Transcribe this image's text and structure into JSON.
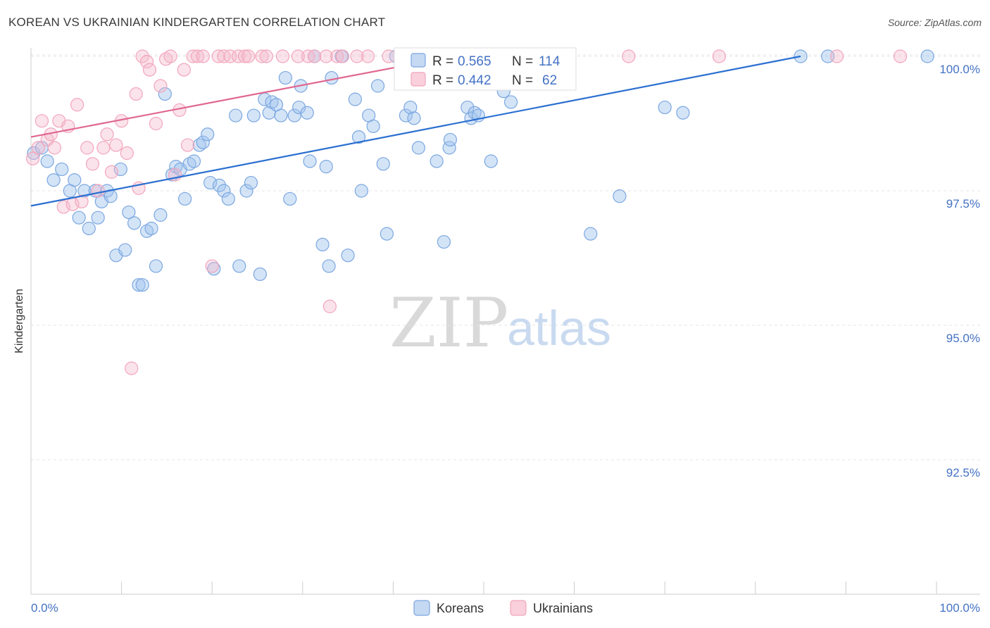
{
  "title": "KOREAN VS UKRAINIAN KINDERGARTEN CORRELATION CHART",
  "source": "Source: ZipAtlas.com",
  "watermark": {
    "part1": "ZIP",
    "part2": "atlas"
  },
  "chart_data": {
    "type": "scatter",
    "title": "KOREAN VS UKRAINIAN KINDERGARTEN CORRELATION CHART",
    "xlabel": "",
    "ylabel": "Kindergarten",
    "xlim": [
      0,
      100
    ],
    "ylim": [
      90.2,
      100.4
    ],
    "x_tick_labels": [
      "0.0%",
      "100.0%"
    ],
    "y_ticks": [
      100.0,
      97.5,
      95.0,
      92.5
    ],
    "y_tick_labels": [
      "100.0%",
      "97.5%",
      "95.0%",
      "92.5%"
    ],
    "legend": [
      {
        "name": "Koreans",
        "R_label": "R = ",
        "R": "0.565",
        "N_label": "N = ",
        "N": "114",
        "color": "#7ba7e0"
      },
      {
        "name": "Ukrainians",
        "R_label": "R = ",
        "R": "0.442",
        "N_label": "N = ",
        "N": "62",
        "color": "#f2a5bb"
      }
    ],
    "series": [
      {
        "name": "Koreans",
        "color": "#7ba7e0",
        "trend_color": "#2a6fd1",
        "trend": {
          "x": [
            0,
            85
          ],
          "y": [
            97.22,
            100.0
          ]
        },
        "points": [
          [
            0.3,
            98.2
          ],
          [
            1.8,
            98.05
          ],
          [
            1.2,
            98.3
          ],
          [
            2.5,
            97.7
          ],
          [
            3.4,
            97.9
          ],
          [
            4.3,
            97.5
          ],
          [
            4.8,
            97.7
          ],
          [
            5.3,
            97.0
          ],
          [
            5.9,
            97.5
          ],
          [
            6.4,
            96.8
          ],
          [
            7.1,
            97.5
          ],
          [
            7.4,
            97.0
          ],
          [
            7.8,
            97.3
          ],
          [
            8.4,
            97.5
          ],
          [
            8.8,
            97.4
          ],
          [
            9.4,
            96.3
          ],
          [
            9.9,
            97.9
          ],
          [
            10.4,
            96.4
          ],
          [
            10.8,
            97.1
          ],
          [
            11.4,
            96.9
          ],
          [
            11.9,
            95.75
          ],
          [
            12.3,
            95.75
          ],
          [
            12.8,
            96.75
          ],
          [
            13.3,
            96.8
          ],
          [
            13.8,
            96.1
          ],
          [
            14.3,
            97.05
          ],
          [
            14.8,
            99.3
          ],
          [
            15.6,
            97.8
          ],
          [
            16.0,
            97.95
          ],
          [
            16.5,
            97.9
          ],
          [
            17.0,
            97.35
          ],
          [
            17.5,
            98.0
          ],
          [
            18.0,
            98.05
          ],
          [
            18.6,
            98.35
          ],
          [
            19.0,
            98.4
          ],
          [
            19.5,
            98.55
          ],
          [
            19.8,
            97.65
          ],
          [
            20.2,
            96.05
          ],
          [
            20.8,
            97.6
          ],
          [
            21.3,
            97.5
          ],
          [
            21.8,
            97.35
          ],
          [
            22.6,
            98.9
          ],
          [
            23.0,
            96.1
          ],
          [
            23.8,
            97.5
          ],
          [
            24.3,
            97.65
          ],
          [
            24.6,
            98.9
          ],
          [
            25.3,
            95.95
          ],
          [
            25.8,
            99.2
          ],
          [
            26.3,
            98.95
          ],
          [
            26.6,
            99.15
          ],
          [
            27.1,
            99.1
          ],
          [
            27.6,
            98.9
          ],
          [
            28.1,
            99.6
          ],
          [
            28.6,
            97.35
          ],
          [
            29.1,
            98.9
          ],
          [
            29.6,
            99.05
          ],
          [
            29.8,
            99.45
          ],
          [
            30.5,
            98.95
          ],
          [
            30.8,
            98.05
          ],
          [
            31.3,
            100.0
          ],
          [
            32.2,
            96.5
          ],
          [
            32.6,
            97.95
          ],
          [
            32.9,
            96.1
          ],
          [
            33.2,
            99.6
          ],
          [
            34.3,
            100.0
          ],
          [
            35.0,
            96.3
          ],
          [
            35.8,
            99.2
          ],
          [
            36.2,
            98.5
          ],
          [
            36.5,
            97.5
          ],
          [
            37.3,
            98.9
          ],
          [
            37.8,
            98.7
          ],
          [
            38.3,
            99.45
          ],
          [
            38.9,
            98.0
          ],
          [
            39.3,
            96.7
          ],
          [
            40.3,
            100.0
          ],
          [
            41.4,
            98.9
          ],
          [
            41.9,
            99.05
          ],
          [
            42.3,
            98.85
          ],
          [
            42.8,
            98.3
          ],
          [
            44.8,
            98.05
          ],
          [
            45.6,
            96.55
          ],
          [
            46.2,
            98.3
          ],
          [
            46.3,
            98.45
          ],
          [
            47.2,
            100.0
          ],
          [
            48.2,
            99.05
          ],
          [
            48.6,
            98.85
          ],
          [
            49.0,
            98.95
          ],
          [
            49.4,
            98.9
          ],
          [
            50.5,
            99.5
          ],
          [
            50.8,
            98.05
          ],
          [
            52.2,
            99.35
          ],
          [
            53.0,
            99.15
          ],
          [
            53.8,
            99.6
          ],
          [
            54.6,
            99.6
          ],
          [
            55.4,
            100.0
          ],
          [
            61.8,
            96.7
          ],
          [
            65.0,
            97.4
          ],
          [
            70.0,
            99.05
          ],
          [
            72.0,
            98.95
          ],
          [
            85.0,
            100.0
          ],
          [
            88.0,
            100.0
          ],
          [
            99.0,
            100.0
          ]
        ]
      },
      {
        "name": "Ukrainians",
        "color": "#f2a5bb",
        "trend_color": "#e0678f",
        "trend": {
          "x": [
            0,
            42
          ],
          "y": [
            98.5,
            99.85
          ]
        },
        "points": [
          [
            0.2,
            98.1
          ],
          [
            0.8,
            98.3
          ],
          [
            1.2,
            98.8
          ],
          [
            1.8,
            98.45
          ],
          [
            2.2,
            98.55
          ],
          [
            2.6,
            98.3
          ],
          [
            3.1,
            98.8
          ],
          [
            3.6,
            97.2
          ],
          [
            4.1,
            98.7
          ],
          [
            4.6,
            97.25
          ],
          [
            5.1,
            99.1
          ],
          [
            5.6,
            97.3
          ],
          [
            6.2,
            98.3
          ],
          [
            6.8,
            98.0
          ],
          [
            7.4,
            97.5
          ],
          [
            8.0,
            98.3
          ],
          [
            8.4,
            98.55
          ],
          [
            8.9,
            97.85
          ],
          [
            9.4,
            98.35
          ],
          [
            10.0,
            98.8
          ],
          [
            10.6,
            98.2
          ],
          [
            11.1,
            94.2
          ],
          [
            11.6,
            99.3
          ],
          [
            11.9,
            97.55
          ],
          [
            12.3,
            100.0
          ],
          [
            12.8,
            99.9
          ],
          [
            13.1,
            99.75
          ],
          [
            13.8,
            98.75
          ],
          [
            14.3,
            99.45
          ],
          [
            14.9,
            99.95
          ],
          [
            15.4,
            100.0
          ],
          [
            15.9,
            97.8
          ],
          [
            16.4,
            99.0
          ],
          [
            16.9,
            99.75
          ],
          [
            17.3,
            98.35
          ],
          [
            17.9,
            100.0
          ],
          [
            18.4,
            100.0
          ],
          [
            19.0,
            100.0
          ],
          [
            20.0,
            96.1
          ],
          [
            20.7,
            100.0
          ],
          [
            21.3,
            100.0
          ],
          [
            22.0,
            100.0
          ],
          [
            22.9,
            100.0
          ],
          [
            23.6,
            100.0
          ],
          [
            24.0,
            100.0
          ],
          [
            25.5,
            100.0
          ],
          [
            26.0,
            100.0
          ],
          [
            27.8,
            100.0
          ],
          [
            29.5,
            100.0
          ],
          [
            30.6,
            100.0
          ],
          [
            31.3,
            100.0
          ],
          [
            32.6,
            100.0
          ],
          [
            33.0,
            95.35
          ],
          [
            33.8,
            100.0
          ],
          [
            34.4,
            100.0
          ],
          [
            36.0,
            100.0
          ],
          [
            37.2,
            100.0
          ],
          [
            39.5,
            100.0
          ],
          [
            41.4,
            100.0
          ],
          [
            66.0,
            100.0
          ],
          [
            76.0,
            100.0
          ],
          [
            89.0,
            100.0
          ],
          [
            96.0,
            100.0
          ]
        ]
      }
    ]
  }
}
